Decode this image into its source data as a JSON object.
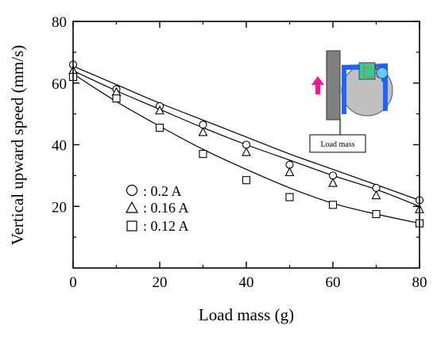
{
  "chart_data": {
    "type": "scatter",
    "xlabel": "Load mass (g)",
    "ylabel": "Vertical upward speed (mm/s)",
    "xlim": [
      0,
      80
    ],
    "ylim": [
      0,
      80
    ],
    "xticks": [
      0,
      20,
      40,
      60,
      80
    ],
    "yticks": [
      20,
      40,
      60,
      80
    ],
    "grid": false,
    "legend_position": "center-left",
    "series": [
      {
        "name": ": 0.2 A",
        "marker": "circle",
        "x": [
          0,
          10,
          20,
          30,
          40,
          50,
          60,
          70,
          80
        ],
        "y": [
          66,
          58,
          52.5,
          46.5,
          40,
          33.5,
          30,
          26,
          22
        ],
        "fit": [
          65.5,
          59.5,
          53.5,
          48,
          42.5,
          37,
          32,
          27,
          22
        ]
      },
      {
        "name": ": 0.16 A",
        "marker": "triangle",
        "x": [
          0,
          10,
          20,
          30,
          40,
          50,
          60,
          70,
          80
        ],
        "y": [
          64,
          57,
          51,
          44,
          37.5,
          31,
          27.5,
          23.5,
          19
        ],
        "fit": [
          64,
          57.5,
          51.5,
          45.5,
          40,
          35,
          30,
          25.5,
          20
        ]
      },
      {
        "name": ": 0.12 A",
        "marker": "square",
        "x": [
          0,
          10,
          20,
          30,
          40,
          50,
          60,
          70,
          80
        ],
        "y": [
          62,
          55,
          45.5,
          37,
          28.5,
          23,
          20.5,
          17.5,
          14.5
        ],
        "fit": [
          63,
          54,
          46,
          38.5,
          32,
          26,
          21,
          17.5,
          14.5
        ]
      }
    ],
    "inset": {
      "label": "Load mass",
      "colors": {
        "arrow": "#ff1493",
        "frame": "#1e64ff",
        "magnet": "#33cc99",
        "spring": "#e06a1a",
        "ball": "#66ccff",
        "wheel": "#c0c0c0",
        "plate": "#808080",
        "wire": "#3a9a3a"
      }
    }
  }
}
